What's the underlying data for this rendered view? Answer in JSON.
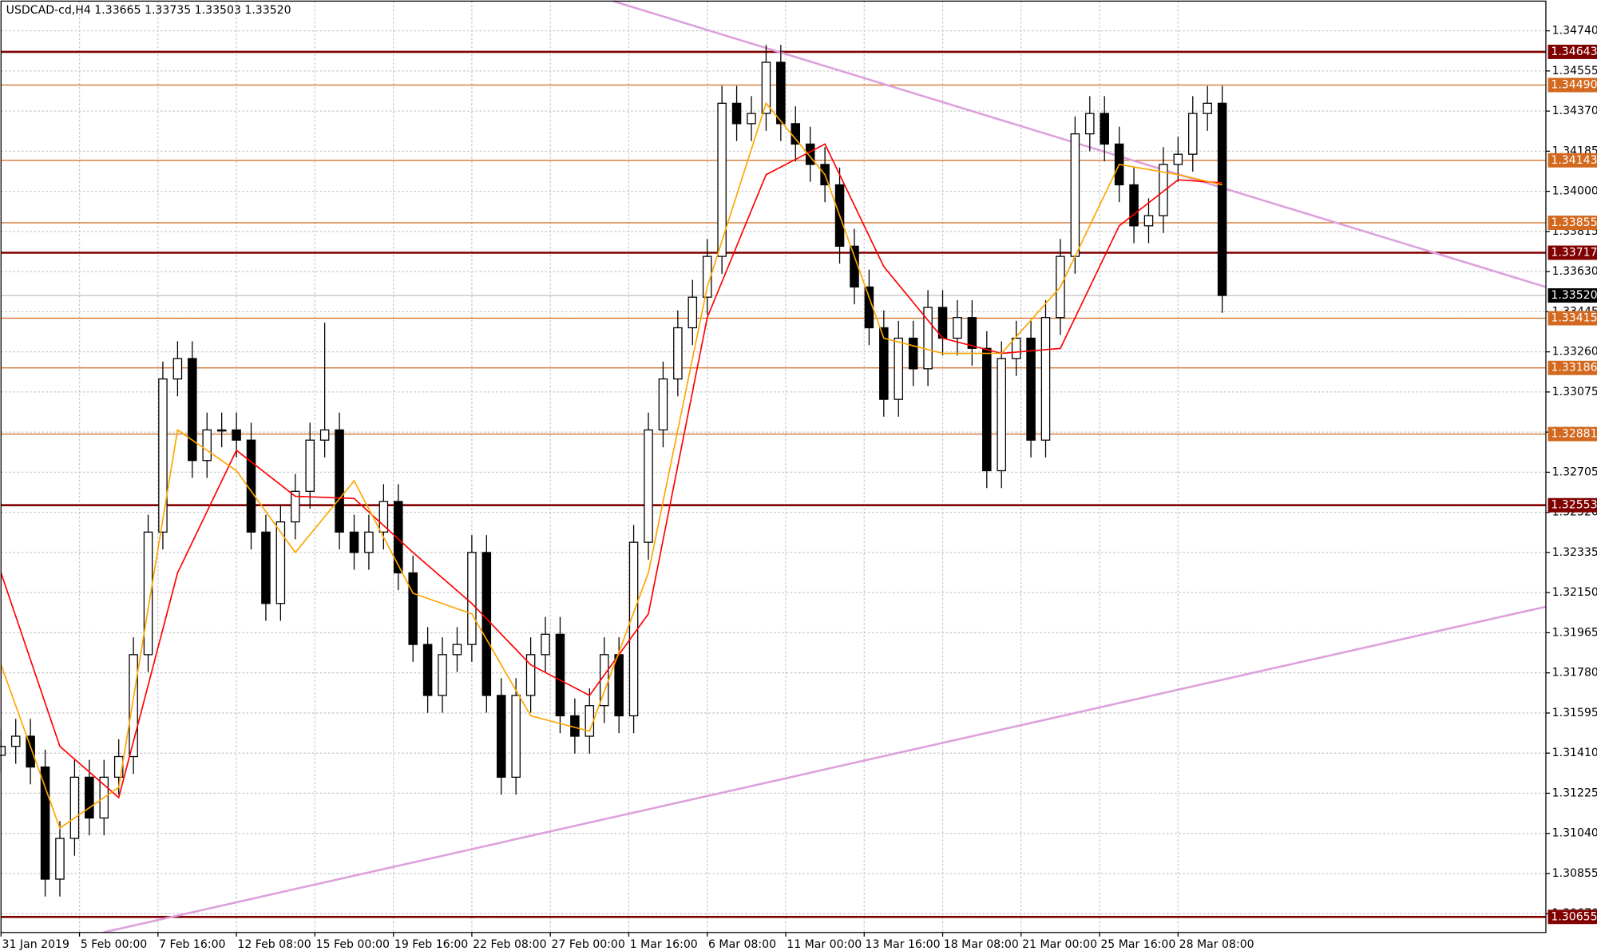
{
  "chart_data": {
    "type": "candlestick",
    "title": "USDCAD-cd,H4 1.33665 1.33735 1.33503 1.33520",
    "xlim": [
      0,
      315
    ],
    "ylim": [
      1.30583,
      1.34877
    ],
    "grid": true,
    "up_color": "#ffffff",
    "down_color": "#000000",
    "xticks": [
      {
        "value": 0,
        "label": "31 Jan 2019"
      },
      {
        "value": 16,
        "label": "5 Feb 00:00"
      },
      {
        "value": 32,
        "label": "7 Feb 16:00"
      },
      {
        "value": 48,
        "label": "12 Feb 08:00"
      },
      {
        "value": 64,
        "label": "15 Feb 00:00"
      },
      {
        "value": 80,
        "label": "19 Feb 16:00"
      },
      {
        "value": 96,
        "label": "22 Feb 08:00"
      },
      {
        "value": 112,
        "label": "27 Feb 00:00"
      },
      {
        "value": 128,
        "label": "1 Mar 16:00"
      },
      {
        "value": 144,
        "label": "6 Mar 08:00"
      },
      {
        "value": 160,
        "label": "11 Mar 00:00"
      },
      {
        "value": 176,
        "label": "13 Mar 16:00"
      },
      {
        "value": 192,
        "label": "18 Mar 08:00"
      },
      {
        "value": 208,
        "label": "21 Mar 00:00"
      },
      {
        "value": 224,
        "label": "25 Mar 16:00"
      },
      {
        "value": 240,
        "label": "28 Mar 08:00"
      }
    ],
    "yticks": [
      {
        "value": 1.3474,
        "label": "1.34740"
      },
      {
        "value": 1.34555,
        "label": "1.34555"
      },
      {
        "value": 1.3437,
        "label": "1.34370"
      },
      {
        "value": 1.34185,
        "label": "1.34185"
      },
      {
        "value": 1.34,
        "label": "1.34000"
      },
      {
        "value": 1.33815,
        "label": "1.33815"
      },
      {
        "value": 1.3363,
        "label": "1.33630"
      },
      {
        "value": 1.33445,
        "label": "1.33445"
      },
      {
        "value": 1.3326,
        "label": "1.33260"
      },
      {
        "value": 1.33075,
        "label": "1.33075"
      },
      {
        "value": 1.3289,
        "label": "1.32890"
      },
      {
        "value": 1.32705,
        "label": "1.32705"
      },
      {
        "value": 1.3252,
        "label": "1.32520"
      },
      {
        "value": 1.32335,
        "label": "1.32335"
      },
      {
        "value": 1.3215,
        "label": "1.32150"
      },
      {
        "value": 1.31965,
        "label": "1.31965"
      },
      {
        "value": 1.3178,
        "label": "1.31780"
      },
      {
        "value": 1.31595,
        "label": "1.31595"
      },
      {
        "value": 1.3141,
        "label": "1.31410"
      },
      {
        "value": 1.31225,
        "label": "1.31225"
      },
      {
        "value": 1.3104,
        "label": "1.31040"
      },
      {
        "value": 1.30855,
        "label": "1.30855"
      },
      {
        "value": 1.3067,
        "label": "1.30670"
      }
    ],
    "levels": [
      {
        "value": 1.34643,
        "label": "1.34643",
        "color": "#800000"
      },
      {
        "value": 1.3449,
        "label": "1.34490",
        "color": "#d2691e"
      },
      {
        "value": 1.34143,
        "label": "1.34143",
        "color": "#d2691e"
      },
      {
        "value": 1.33855,
        "label": "1.33855",
        "color": "#d2691e"
      },
      {
        "value": 1.33717,
        "label": "1.33717",
        "color": "#800000"
      },
      {
        "value": 1.33415,
        "label": "1.33415",
        "color": "#d2691e"
      },
      {
        "value": 1.33186,
        "label": "1.33186",
        "color": "#d2691e"
      },
      {
        "value": 1.32881,
        "label": "1.32881",
        "color": "#d2691e"
      },
      {
        "value": 1.32553,
        "label": "1.32553",
        "color": "#800000"
      },
      {
        "value": 1.30655,
        "label": "1.30655",
        "color": "#800000"
      }
    ],
    "current_price": {
      "value": 1.3352,
      "label": "1.33520",
      "color": "#000000"
    },
    "x": [
      0,
      3,
      6,
      9,
      12,
      15,
      18,
      21,
      24,
      27,
      30,
      33,
      36,
      39,
      42,
      45,
      48,
      51,
      54,
      57,
      60,
      63,
      66,
      69,
      72,
      75,
      78,
      81,
      84,
      87,
      90,
      93,
      96,
      99,
      102,
      105,
      108,
      111,
      114,
      117,
      120,
      123,
      126,
      129,
      132,
      135,
      138,
      141,
      144,
      147,
      150,
      153,
      156,
      159,
      162,
      165,
      168,
      171,
      174,
      177,
      180,
      183,
      186,
      189,
      192,
      195,
      198,
      201,
      204,
      207,
      210,
      213,
      216,
      219,
      222,
      225,
      228,
      231,
      234,
      237,
      240,
      243,
      246,
      249
    ],
    "open": [
      1.314,
      1.31441,
      1.31488,
      1.31346,
      1.30829,
      1.31017,
      1.31299,
      1.31111,
      1.31299,
      1.31394,
      1.31864,
      1.32429,
      1.33135,
      1.33229,
      1.32759,
      1.329,
      1.329,
      1.32853,
      1.32429,
      1.321,
      1.32476,
      1.32617,
      1.32853,
      1.329,
      1.32429,
      1.32335,
      1.32429,
      1.3257,
      1.32241,
      1.31911,
      1.31676,
      1.31864,
      1.31911,
      1.32335,
      1.31676,
      1.31299,
      1.31676,
      1.31864,
      1.31958,
      1.31582,
      1.31488,
      1.31629,
      1.31864,
      1.31582,
      1.32382,
      1.329,
      1.33135,
      1.33371,
      1.33512,
      1.337,
      1.34406,
      1.34312,
      1.34359,
      1.34595,
      1.34312,
      1.34218,
      1.34124,
      1.3403,
      1.33747,
      1.33559,
      1.33371,
      1.33041,
      1.33323,
      1.33182,
      1.33465,
      1.33323,
      1.33418,
      1.33276,
      1.32712,
      1.33229,
      1.33323,
      1.32853,
      1.33418,
      1.337,
      1.34265,
      1.34359,
      1.34218,
      1.3403,
      1.33841,
      1.33888,
      1.34124,
      1.34171,
      1.34359,
      1.34406
    ],
    "high": [
      1.31521,
      1.31568,
      1.31568,
      1.31426,
      1.31097,
      1.31379,
      1.31379,
      1.31379,
      1.31474,
      1.31944,
      1.32509,
      1.33215,
      1.33309,
      1.33309,
      1.3298,
      1.3298,
      1.3298,
      1.32933,
      1.32509,
      1.32556,
      1.32697,
      1.32933,
      1.33394,
      1.3298,
      1.32509,
      1.32509,
      1.3265,
      1.3265,
      1.32321,
      1.31991,
      1.31944,
      1.31991,
      1.32415,
      1.32415,
      1.31756,
      1.31756,
      1.31944,
      1.32038,
      1.32038,
      1.31662,
      1.31709,
      1.31944,
      1.31944,
      1.32462,
      1.3298,
      1.33215,
      1.33451,
      1.33592,
      1.3378,
      1.34486,
      1.34486,
      1.34439,
      1.34675,
      1.34675,
      1.34392,
      1.34298,
      1.34204,
      1.3411,
      1.33827,
      1.33639,
      1.33451,
      1.33403,
      1.33403,
      1.33545,
      1.33545,
      1.33498,
      1.33498,
      1.33356,
      1.33309,
      1.33403,
      1.33403,
      1.33498,
      1.3378,
      1.34345,
      1.34439,
      1.34439,
      1.34298,
      1.3411,
      1.33968,
      1.34204,
      1.34251,
      1.34439,
      1.34486,
      1.34486
    ],
    "low": [
      1.3132,
      1.31361,
      1.31266,
      1.30749,
      1.30749,
      1.30937,
      1.31031,
      1.31031,
      1.31219,
      1.31314,
      1.31784,
      1.32349,
      1.33055,
      1.32679,
      1.32679,
      1.3282,
      1.32773,
      1.32349,
      1.3202,
      1.3202,
      1.32396,
      1.32537,
      1.32773,
      1.32349,
      1.32255,
      1.32255,
      1.32349,
      1.32161,
      1.31831,
      1.31596,
      1.31596,
      1.31784,
      1.31831,
      1.31596,
      1.31219,
      1.31219,
      1.31596,
      1.31784,
      1.31502,
      1.31408,
      1.31408,
      1.31549,
      1.31502,
      1.31502,
      1.32302,
      1.3282,
      1.33055,
      1.33291,
      1.33432,
      1.3362,
      1.34232,
      1.34232,
      1.34279,
      1.34232,
      1.34138,
      1.34044,
      1.3395,
      1.33667,
      1.33479,
      1.33291,
      1.32961,
      1.32961,
      1.33102,
      1.33102,
      1.33243,
      1.33243,
      1.33196,
      1.32632,
      1.32632,
      1.33149,
      1.32773,
      1.32773,
      1.33338,
      1.3362,
      1.34185,
      1.34138,
      1.3395,
      1.33761,
      1.33761,
      1.33808,
      1.34044,
      1.34091,
      1.34279,
      1.3344
    ],
    "close": [
      1.31441,
      1.31488,
      1.31346,
      1.30829,
      1.31017,
      1.31299,
      1.31111,
      1.31299,
      1.31394,
      1.31864,
      1.32429,
      1.33135,
      1.33229,
      1.32759,
      1.329,
      1.329,
      1.32853,
      1.32429,
      1.321,
      1.32476,
      1.32617,
      1.32853,
      1.329,
      1.32429,
      1.32335,
      1.32429,
      1.3257,
      1.32241,
      1.31911,
      1.31676,
      1.31864,
      1.31911,
      1.32335,
      1.31676,
      1.31299,
      1.31676,
      1.31864,
      1.31958,
      1.31582,
      1.31488,
      1.31629,
      1.31864,
      1.31582,
      1.32382,
      1.329,
      1.33135,
      1.33371,
      1.33512,
      1.337,
      1.34406,
      1.34312,
      1.34359,
      1.34595,
      1.34312,
      1.34218,
      1.34124,
      1.3403,
      1.33747,
      1.33559,
      1.33371,
      1.33041,
      1.33323,
      1.33182,
      1.33465,
      1.33323,
      1.33418,
      1.33276,
      1.32712,
      1.33229,
      1.33323,
      1.32853,
      1.33418,
      1.337,
      1.34265,
      1.34359,
      1.34218,
      1.3403,
      1.33841,
      1.33888,
      1.34124,
      1.34171,
      1.34359,
      1.34406,
      1.3352
    ],
    "moving_averages": [
      {
        "color": "#ff0000",
        "x": [
          0,
          12,
          24,
          36,
          48,
          60,
          72,
          84,
          96,
          108,
          120,
          132,
          144,
          156,
          168,
          180,
          192,
          204,
          216,
          228,
          240,
          249
        ],
        "values": [
          1.32241,
          1.31441,
          1.31205,
          1.32241,
          1.32806,
          1.32594,
          1.32584,
          1.32335,
          1.321,
          1.31817,
          1.31676,
          1.32052,
          1.33418,
          1.34077,
          1.34218,
          1.33653,
          1.33323,
          1.33253,
          1.33276,
          1.33841,
          1.34053,
          1.34039
        ]
      },
      {
        "color": "#ffa500",
        "x": [
          0,
          12,
          24,
          36,
          48,
          60,
          72,
          84,
          96,
          108,
          120,
          132,
          144,
          156,
          168,
          180,
          192,
          204,
          216,
          228,
          240,
          249
        ],
        "values": [
          1.31817,
          1.31064,
          1.31252,
          1.329,
          1.32712,
          1.32335,
          1.32665,
          1.32147,
          1.32052,
          1.31582,
          1.31511,
          1.32241,
          1.33559,
          1.34406,
          1.34077,
          1.33323,
          1.33253,
          1.33253,
          1.33559,
          1.34124,
          1.34077,
          1.3403
        ]
      }
    ],
    "trendlines": [
      {
        "color": "#dda0dd",
        "x": [
          124.8,
          315
        ],
        "values": [
          1.34877,
          1.33559
        ]
      },
      {
        "color": "#dda0dd",
        "x": [
          20.9,
          315
        ],
        "values": [
          1.30584,
          1.32085
        ]
      }
    ]
  }
}
